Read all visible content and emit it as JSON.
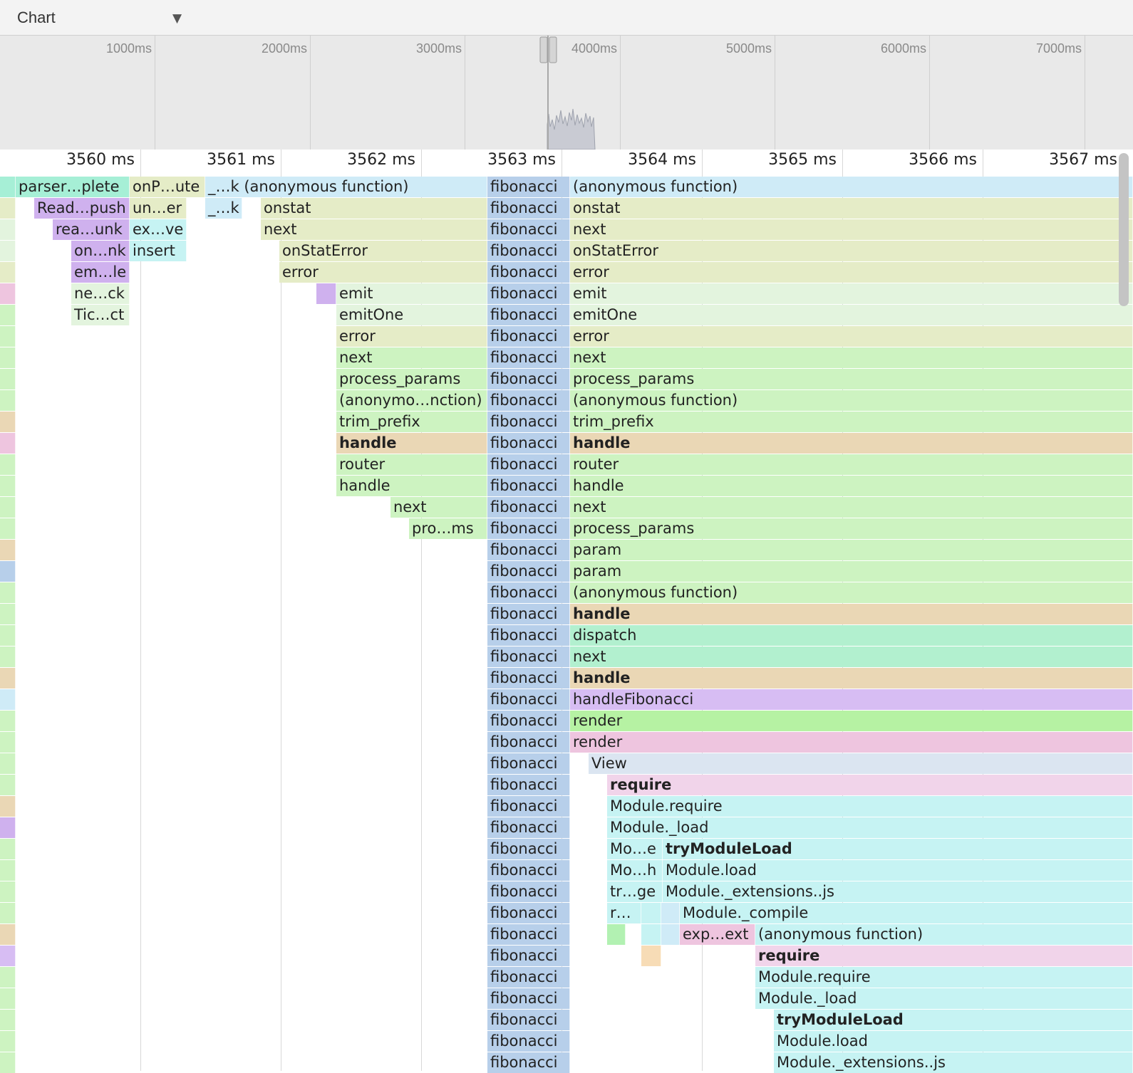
{
  "toolbar": {
    "view_label": "Chart",
    "arrow": "▼"
  },
  "overview": {
    "ticks": [
      "1000ms",
      "2000ms",
      "3000ms",
      "4000ms",
      "5000ms",
      "6000ms",
      "7000ms"
    ]
  },
  "ruler": {
    "ticks": [
      "3560 ms",
      "3561 ms",
      "3562 ms",
      "3563 ms",
      "3564 ms",
      "3565 ms",
      "3566 ms",
      "3567 ms"
    ]
  },
  "colors": {
    "teal": "#a6efd6",
    "lightblue": "#cfebf7",
    "olive": "#e5ecc7",
    "mint": "#e3f4de",
    "green": "#cdf3c1",
    "tan": "#ead7b5",
    "blue": "#b7cfea",
    "purple": "#cfb1ee",
    "cyan": "#c6f3f3",
    "pink": "#eec5df",
    "lightpink": "#f1d4ea",
    "viewblue": "#dbe5f1",
    "seafoam": "#b2f0cf",
    "lime": "#b6f2a3",
    "lavender": "#d7bdf3",
    "peach": "#f7dcb6",
    "mintgreen": "#b2f1b2"
  },
  "frames": [
    {
      "label": "",
      "color": "teal"
    },
    {
      "label": "parser…plete",
      "color": "teal"
    },
    {
      "label": "onP…ute",
      "color": "olive"
    },
    {
      "label": "_…k (anonymous function)",
      "color": "lightblue"
    },
    {
      "label": "fibonacci",
      "color": "blue"
    },
    {
      "label": "(anonymous function)",
      "color": "lightblue"
    },
    {
      "label": "",
      "color": "olive"
    },
    {
      "label": "Read…push",
      "color": "purple"
    },
    {
      "label": "un…er",
      "color": "olive"
    },
    {
      "label": "_…k",
      "color": "lightblue"
    },
    {
      "label": "onstat",
      "color": "olive"
    },
    {
      "label": "fibonacci",
      "color": "blue"
    },
    {
      "label": "onstat",
      "color": "olive"
    },
    {
      "label": "",
      "color": "mint"
    },
    {
      "label": "rea…unk",
      "color": "purple"
    },
    {
      "label": "ex…ve",
      "color": "cyan"
    },
    {
      "label": "next",
      "color": "olive"
    },
    {
      "label": "fibonacci",
      "color": "blue"
    },
    {
      "label": "next",
      "color": "olive"
    },
    {
      "label": "",
      "color": "mint"
    },
    {
      "label": "on…nk",
      "color": "purple"
    },
    {
      "label": "insert",
      "color": "cyan"
    },
    {
      "label": "onStatError",
      "color": "olive"
    },
    {
      "label": "fibonacci",
      "color": "blue"
    },
    {
      "label": "onStatError",
      "color": "olive"
    },
    {
      "label": "",
      "color": "olive"
    },
    {
      "label": "em…le",
      "color": "purple"
    },
    {
      "label": "error",
      "color": "olive"
    },
    {
      "label": "fibonacci",
      "color": "blue"
    },
    {
      "label": "error",
      "color": "olive"
    },
    {
      "label": "",
      "color": "pink"
    },
    {
      "label": "ne…ck",
      "color": "mint"
    },
    {
      "label": "",
      "color": "purple"
    },
    {
      "label": "emit",
      "color": "mint"
    },
    {
      "label": "fibonacci",
      "color": "blue"
    },
    {
      "label": "emit",
      "color": "mint"
    },
    {
      "label": "",
      "color": "green"
    },
    {
      "label": "Tic…ct",
      "color": "mint"
    },
    {
      "label": "emitOne",
      "color": "mint"
    },
    {
      "label": "fibonacci",
      "color": "blue"
    },
    {
      "label": "emitOne",
      "color": "mint"
    },
    {
      "label": "",
      "color": "green"
    },
    {
      "label": "error",
      "color": "olive"
    },
    {
      "label": "fibonacci",
      "color": "blue"
    },
    {
      "label": "error",
      "color": "olive"
    },
    {
      "label": "",
      "color": "green"
    },
    {
      "label": "next",
      "color": "green"
    },
    {
      "label": "fibonacci",
      "color": "blue"
    },
    {
      "label": "next",
      "color": "green"
    },
    {
      "label": "",
      "color": "green"
    },
    {
      "label": "process_params",
      "color": "green"
    },
    {
      "label": "fibonacci",
      "color": "blue"
    },
    {
      "label": "process_params",
      "color": "green"
    },
    {
      "label": "",
      "color": "green"
    },
    {
      "label": "(anonymo…nction)",
      "color": "green"
    },
    {
      "label": "fibonacci",
      "color": "blue"
    },
    {
      "label": "(anonymous function)",
      "color": "green"
    },
    {
      "label": "",
      "color": "tan"
    },
    {
      "label": "trim_prefix",
      "color": "green"
    },
    {
      "label": "fibonacci",
      "color": "blue"
    },
    {
      "label": "trim_prefix",
      "color": "green"
    },
    {
      "label": "",
      "color": "pink"
    },
    {
      "label": "handle",
      "color": "tan"
    },
    {
      "label": "fibonacci",
      "color": "blue"
    },
    {
      "label": "handle",
      "color": "tan"
    },
    {
      "label": "",
      "color": "green"
    },
    {
      "label": "router",
      "color": "green"
    },
    {
      "label": "fibonacci",
      "color": "blue"
    },
    {
      "label": "router",
      "color": "green"
    },
    {
      "label": "",
      "color": "green"
    },
    {
      "label": "handle",
      "color": "green"
    },
    {
      "label": "fibonacci",
      "color": "blue"
    },
    {
      "label": "handle",
      "color": "green"
    },
    {
      "label": "",
      "color": "green"
    },
    {
      "label": "next",
      "color": "green"
    },
    {
      "label": "fibonacci",
      "color": "blue"
    },
    {
      "label": "next",
      "color": "green"
    },
    {
      "label": "",
      "color": "green"
    },
    {
      "label": "pro…ms",
      "color": "green"
    },
    {
      "label": "fibonacci",
      "color": "blue"
    },
    {
      "label": "process_params",
      "color": "green"
    },
    {
      "label": "",
      "color": "tan"
    },
    {
      "label": "fibonacci",
      "color": "blue"
    },
    {
      "label": "param",
      "color": "green"
    },
    {
      "label": "",
      "color": "blue"
    },
    {
      "label": "fibonacci",
      "color": "blue"
    },
    {
      "label": "param",
      "color": "green"
    },
    {
      "label": "",
      "color": "green"
    },
    {
      "label": "fibonacci",
      "color": "blue"
    },
    {
      "label": "(anonymous function)",
      "color": "green"
    },
    {
      "label": "",
      "color": "green"
    },
    {
      "label": "fibonacci",
      "color": "blue"
    },
    {
      "label": "handle",
      "color": "tan"
    },
    {
      "label": "",
      "color": "green"
    },
    {
      "label": "fibonacci",
      "color": "blue"
    },
    {
      "label": "dispatch",
      "color": "seafoam"
    },
    {
      "label": "",
      "color": "green"
    },
    {
      "label": "fibonacci",
      "color": "blue"
    },
    {
      "label": "next",
      "color": "seafoam"
    },
    {
      "label": "",
      "color": "tan"
    },
    {
      "label": "fibonacci",
      "color": "blue"
    },
    {
      "label": "handle",
      "color": "tan"
    },
    {
      "label": "",
      "color": "lightblue"
    },
    {
      "label": "fibonacci",
      "color": "blue"
    },
    {
      "label": "handleFibonacci",
      "color": "lavender"
    },
    {
      "label": "",
      "color": "green"
    },
    {
      "label": "fibonacci",
      "color": "blue"
    },
    {
      "label": "render",
      "color": "lime"
    },
    {
      "label": "",
      "color": "green"
    },
    {
      "label": "fibonacci",
      "color": "blue"
    },
    {
      "label": "render",
      "color": "pink"
    },
    {
      "label": "",
      "color": "green"
    },
    {
      "label": "fibonacci",
      "color": "blue"
    },
    {
      "label": "View",
      "color": "viewblue"
    },
    {
      "label": "",
      "color": "green"
    },
    {
      "label": "fibonacci",
      "color": "blue"
    },
    {
      "label": "require",
      "color": "lightpink"
    },
    {
      "label": "",
      "color": "tan"
    },
    {
      "label": "fibonacci",
      "color": "blue"
    },
    {
      "label": "Module.require",
      "color": "cyan"
    },
    {
      "label": "",
      "color": "purple"
    },
    {
      "label": "fibonacci",
      "color": "blue"
    },
    {
      "label": "Module._load",
      "color": "cyan"
    },
    {
      "label": "",
      "color": "green"
    },
    {
      "label": "fibonacci",
      "color": "blue"
    },
    {
      "label": "Mo…e",
      "color": "cyan"
    },
    {
      "label": "tryModuleLoad",
      "color": "cyan"
    },
    {
      "label": "",
      "color": "green"
    },
    {
      "label": "fibonacci",
      "color": "blue"
    },
    {
      "label": "Mo…h",
      "color": "cyan"
    },
    {
      "label": "Module.load",
      "color": "cyan"
    },
    {
      "label": "",
      "color": "green"
    },
    {
      "label": "fibonacci",
      "color": "blue"
    },
    {
      "label": "tr…ge",
      "color": "cyan"
    },
    {
      "label": "Module._extensions..js",
      "color": "cyan"
    },
    {
      "label": "",
      "color": "green"
    },
    {
      "label": "fibonacci",
      "color": "blue"
    },
    {
      "label": "r…",
      "color": "cyan"
    },
    {
      "label": "",
      "color": "cyan"
    },
    {
      "label": "",
      "color": "lightblue"
    },
    {
      "label": "Module._compile",
      "color": "cyan"
    },
    {
      "label": "",
      "color": "tan"
    },
    {
      "label": "fibonacci",
      "color": "blue"
    },
    {
      "label": "",
      "color": "mintgreen"
    },
    {
      "label": "",
      "color": "cyan"
    },
    {
      "label": "",
      "color": "lightblue"
    },
    {
      "label": "exp…ext",
      "color": "pink"
    },
    {
      "label": "(anonymous function)",
      "color": "cyan"
    },
    {
      "label": "",
      "color": "lavender"
    },
    {
      "label": "fibonacci",
      "color": "blue"
    },
    {
      "label": "",
      "color": "peach"
    },
    {
      "label": "require",
      "color": "lightpink"
    },
    {
      "label": "",
      "color": "green"
    },
    {
      "label": "fibonacci",
      "color": "blue"
    },
    {
      "label": "Module.require",
      "color": "cyan"
    },
    {
      "label": "",
      "color": "green"
    },
    {
      "label": "fibonacci",
      "color": "blue"
    },
    {
      "label": "Module._load",
      "color": "cyan"
    },
    {
      "label": "",
      "color": "green"
    },
    {
      "label": "fibonacci",
      "color": "blue"
    },
    {
      "label": "tryModuleLoad",
      "color": "cyan"
    },
    {
      "label": "",
      "color": "green"
    },
    {
      "label": "fibonacci",
      "color": "blue"
    },
    {
      "label": "Module.load",
      "color": "cyan"
    },
    {
      "label": "",
      "color": "green"
    },
    {
      "label": "fibonacci",
      "color": "blue"
    },
    {
      "label": "Module._extensions..js",
      "color": "cyan"
    }
  ]
}
